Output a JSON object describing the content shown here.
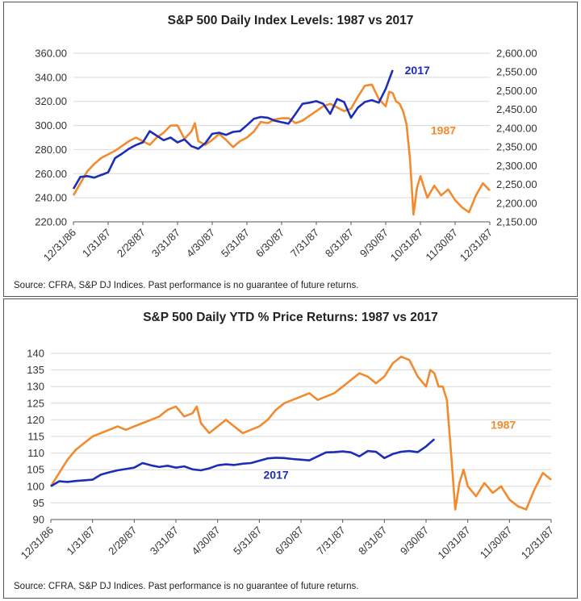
{
  "colors": {
    "s1987": "#F28A2E",
    "s2017": "#1C2DB8",
    "axis": "#555555",
    "grid": "#D9D9D9"
  },
  "chart_data": [
    {
      "type": "line",
      "title": "S&P 500 Daily Index Levels: 1987 vs 2017",
      "source": "Source: CFRA, S&P DJ Indices. Past performance is no guarantee of future returns.",
      "x_tick_labels": [
        "12/31/86",
        "1/31/87",
        "2/28/87",
        "3/31/87",
        "4/30/87",
        "5/31/87",
        "6/30/87",
        "7/31/87",
        "8/31/87",
        "9/30/87",
        "10/31/87",
        "11/30/87",
        "12/31/87"
      ],
      "x_range": [
        0,
        12
      ],
      "y_left_ticks": [
        "220.00",
        "240.00",
        "260.00",
        "280.00",
        "300.00",
        "320.00",
        "340.00",
        "360.00"
      ],
      "y_left_range": [
        220,
        360
      ],
      "y_right_ticks": [
        "2,150.00",
        "2,200.00",
        "2,250.00",
        "2,300.00",
        "2,350.00",
        "2,400.00",
        "2,450.00",
        "2,500.00",
        "2,550.00",
        "2,600.00"
      ],
      "y_right_range": [
        2150,
        2600
      ],
      "grid": "horizontal",
      "series": [
        {
          "name": "1987",
          "axis": "left",
          "x": [
            0,
            0.2,
            0.4,
            0.6,
            0.8,
            1,
            1.2,
            1.4,
            1.6,
            1.8,
            2,
            2.2,
            2.4,
            2.6,
            2.8,
            3,
            3.2,
            3.4,
            3.5,
            3.6,
            3.8,
            4,
            4.2,
            4.4,
            4.6,
            4.8,
            5,
            5.2,
            5.4,
            5.6,
            5.8,
            6,
            6.2,
            6.4,
            6.6,
            6.8,
            7,
            7.2,
            7.4,
            7.6,
            7.8,
            8,
            8.2,
            8.4,
            8.6,
            8.8,
            9,
            9.1,
            9.2,
            9.3,
            9.4,
            9.5,
            9.6,
            9.7,
            9.8,
            9.9,
            10,
            10.2,
            10.4,
            10.6,
            10.8,
            11,
            11.2,
            11.4,
            11.6,
            11.8,
            12
          ],
          "y": [
            242,
            252,
            262,
            268,
            273,
            276,
            279,
            283,
            287,
            290,
            287,
            284,
            290,
            294,
            300,
            300,
            289,
            295,
            302,
            287,
            284,
            288,
            293,
            288,
            282,
            287,
            290,
            295,
            303,
            302,
            305,
            306,
            306,
            302,
            304,
            308,
            312,
            316,
            318,
            315,
            312,
            314,
            324,
            333,
            334,
            322,
            316,
            328,
            327,
            320,
            318,
            312,
            301,
            272,
            226,
            248,
            258,
            240,
            250,
            242,
            247,
            238,
            232,
            228,
            242,
            252,
            246
          ]
        },
        {
          "name": "2017",
          "axis": "right",
          "x": [
            0,
            0.2,
            0.4,
            0.6,
            0.8,
            1,
            1.2,
            1.4,
            1.6,
            1.8,
            2,
            2.2,
            2.4,
            2.6,
            2.8,
            3,
            3.2,
            3.4,
            3.6,
            3.8,
            4,
            4.2,
            4.4,
            4.6,
            4.8,
            5,
            5.2,
            5.4,
            5.6,
            5.8,
            6,
            6.2,
            6.4,
            6.6,
            6.8,
            7,
            7.2,
            7.4,
            7.6,
            7.8,
            8,
            8.2,
            8.4,
            8.6,
            8.8,
            9,
            9.2
          ],
          "y": [
            2238,
            2270,
            2272,
            2268,
            2275,
            2282,
            2320,
            2332,
            2345,
            2355,
            2362,
            2392,
            2380,
            2368,
            2375,
            2362,
            2370,
            2352,
            2345,
            2360,
            2385,
            2388,
            2382,
            2390,
            2392,
            2408,
            2425,
            2430,
            2428,
            2420,
            2416,
            2412,
            2438,
            2465,
            2468,
            2472,
            2465,
            2438,
            2478,
            2470,
            2428,
            2455,
            2470,
            2475,
            2468,
            2505,
            2555
          ]
        }
      ],
      "annotations": [
        {
          "text": "2017",
          "series": "2017",
          "x": 9.55,
          "y": 2555,
          "axis": "right"
        },
        {
          "text": "1987",
          "series": "1987",
          "x": 10.3,
          "y": 296,
          "axis": "left"
        }
      ]
    },
    {
      "type": "line",
      "title": "S&P 500 Daily YTD % Price Returns: 1987 vs 2017",
      "source": "Source: CFRA, S&P DJ Indices. Past performance is no guarantee of future returns.",
      "x_tick_labels": [
        "12/31/86",
        "1/31/87",
        "2/28/87",
        "3/31/87",
        "4/30/87",
        "5/31/87",
        "6/30/87",
        "7/31/87",
        "8/31/87",
        "9/30/87",
        "10/31/87",
        "11/30/87",
        "12/31/87"
      ],
      "x_range": [
        0,
        12
      ],
      "y_left_ticks": [
        "90",
        "95",
        "100",
        "105",
        "110",
        "115",
        "120",
        "125",
        "130",
        "135",
        "140"
      ],
      "y_left_range": [
        90,
        140
      ],
      "grid": "horizontal",
      "series": [
        {
          "name": "1987",
          "axis": "left",
          "x": [
            0,
            0.2,
            0.4,
            0.6,
            0.8,
            1,
            1.2,
            1.4,
            1.6,
            1.8,
            2,
            2.2,
            2.4,
            2.6,
            2.8,
            3,
            3.2,
            3.4,
            3.5,
            3.6,
            3.8,
            4,
            4.2,
            4.4,
            4.6,
            4.8,
            5,
            5.2,
            5.4,
            5.6,
            5.8,
            6,
            6.2,
            6.4,
            6.6,
            6.8,
            7,
            7.2,
            7.4,
            7.6,
            7.8,
            8,
            8.2,
            8.4,
            8.6,
            8.8,
            9,
            9.1,
            9.2,
            9.3,
            9.4,
            9.5,
            9.6,
            9.7,
            9.8,
            9.9,
            10,
            10.2,
            10.4,
            10.6,
            10.8,
            11,
            11.2,
            11.4,
            11.6,
            11.8,
            12
          ],
          "y": [
            100,
            104,
            108,
            111,
            113,
            115,
            116,
            117,
            118,
            117,
            118,
            119,
            120,
            121,
            123,
            124,
            121,
            122,
            124,
            119,
            116,
            118,
            120,
            118,
            116,
            117,
            118,
            120,
            123,
            125,
            126,
            127,
            128,
            126,
            127,
            128,
            130,
            132,
            134,
            133,
            131,
            133,
            137,
            139,
            138,
            133,
            130,
            135,
            134,
            130,
            130,
            126,
            110,
            93,
            101,
            105,
            100,
            97,
            101,
            98,
            100,
            96,
            94,
            93,
            99,
            104,
            102
          ]
        },
        {
          "name": "2017",
          "axis": "left",
          "x": [
            0,
            0.2,
            0.4,
            0.6,
            0.8,
            1,
            1.2,
            1.4,
            1.6,
            1.8,
            2,
            2.2,
            2.4,
            2.6,
            2.8,
            3,
            3.2,
            3.4,
            3.6,
            3.8,
            4,
            4.2,
            4.4,
            4.6,
            4.8,
            5,
            5.2,
            5.4,
            5.6,
            5.8,
            6,
            6.2,
            6.4,
            6.6,
            6.8,
            7,
            7.2,
            7.4,
            7.6,
            7.8,
            8,
            8.2,
            8.4,
            8.6,
            8.8,
            9,
            9.2
          ],
          "y": [
            100,
            101.5,
            101.3,
            101.6,
            101.8,
            102,
            103.5,
            104.2,
            104.8,
            105.2,
            105.6,
            107,
            106.3,
            105.8,
            106.2,
            105.6,
            106,
            105.1,
            104.8,
            105.4,
            106.3,
            106.6,
            106.4,
            106.8,
            107,
            107.7,
            108.4,
            108.6,
            108.5,
            108.2,
            108,
            107.8,
            109,
            110.2,
            110.3,
            110.5,
            110.2,
            109,
            110.6,
            110.4,
            108.5,
            109.7,
            110.4,
            110.6,
            110.3,
            112,
            114.2
          ]
        }
      ],
      "annotations": [
        {
          "text": "2017",
          "series": "2017",
          "x": 5.1,
          "y": 103.5,
          "axis": "left"
        },
        {
          "text": "1987",
          "series": "1987",
          "x": 10.55,
          "y": 118.5,
          "axis": "left"
        }
      ]
    }
  ]
}
